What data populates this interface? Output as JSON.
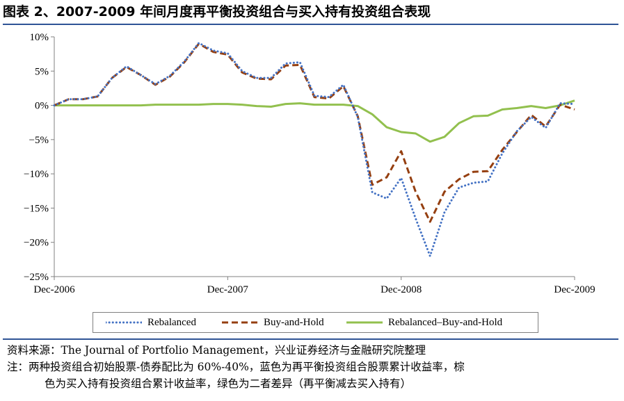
{
  "figure": {
    "title": "图表 2、2007-2009 年间月度再平衡投资组合与买入持有投资组合表现"
  },
  "chart_data": {
    "type": "line",
    "x_tick_labels": [
      "Dec-2006",
      "Dec-2007",
      "Dec-2008",
      "Dec-2009"
    ],
    "y_tick_labels": [
      "10%",
      "5%",
      "0%",
      "−5%",
      "−10%",
      "−15%",
      "−20%",
      "−25%"
    ],
    "ylim": [
      -25,
      10
    ],
    "y_unit": "%",
    "x_start": "Dec-2006",
    "x_end": "Dec-2009",
    "grid": false,
    "legend_position": "bottom",
    "series": [
      {
        "name": "Rebalanced",
        "color": "#4472c4",
        "style": "dotted",
        "values": [
          0,
          0.9,
          0.9,
          1.3,
          4.0,
          5.7,
          4.4,
          3.1,
          4.3,
          6.4,
          9.1,
          8.0,
          7.6,
          5.0,
          4.0,
          4.0,
          6.1,
          6.3,
          1.4,
          1.2,
          3.0,
          -1.7,
          -12.7,
          -13.6,
          -10.6,
          -16.5,
          -22.0,
          -15.6,
          -12.0,
          -11.3,
          -11.1,
          -7.0,
          -3.8,
          -1.7,
          -3.3,
          0.3,
          0.2
        ]
      },
      {
        "name": "Buy-and-Hold",
        "color": "#953f10",
        "style": "dashed",
        "values": [
          0,
          0.9,
          0.9,
          1.3,
          4.0,
          5.6,
          4.4,
          3.0,
          4.2,
          6.3,
          9.0,
          7.8,
          7.4,
          4.8,
          3.9,
          3.8,
          5.8,
          5.9,
          1.2,
          1.0,
          2.8,
          -1.6,
          -11.6,
          -10.5,
          -6.7,
          -12.6,
          -17.0,
          -12.6,
          -10.8,
          -9.7,
          -9.6,
          -6.5,
          -3.9,
          -1.4,
          -3.1,
          0.1,
          -0.6
        ]
      },
      {
        "name": "Rebalanced–Buy-and-Hold",
        "color": "#92c04e",
        "style": "solid",
        "values": [
          0,
          0,
          0,
          0,
          0,
          0,
          0,
          0.1,
          0.1,
          0.1,
          0.1,
          0.2,
          0.2,
          0.1,
          -0.1,
          -0.2,
          0.2,
          0.3,
          0.1,
          0.1,
          0.1,
          -0.1,
          -1.3,
          -3.2,
          -3.9,
          -4.1,
          -5.3,
          -4.6,
          -2.6,
          -1.6,
          -1.5,
          -0.6,
          -0.4,
          -0.1,
          -0.4,
          0,
          0.7
        ]
      }
    ]
  },
  "notes": {
    "source_line": "资料来源：The Journal of Portfolio Management，兴业证券经济与金融研究院整理",
    "note_line1": "注：两种投资组合初始股票-债券配比为 60%-40%，蓝色为再平衡投资组合股票累计收益率，棕",
    "note_line2": "色为买入持有投资组合累计收益率，绿色为二者差异（再平衡减去买入持有）"
  }
}
